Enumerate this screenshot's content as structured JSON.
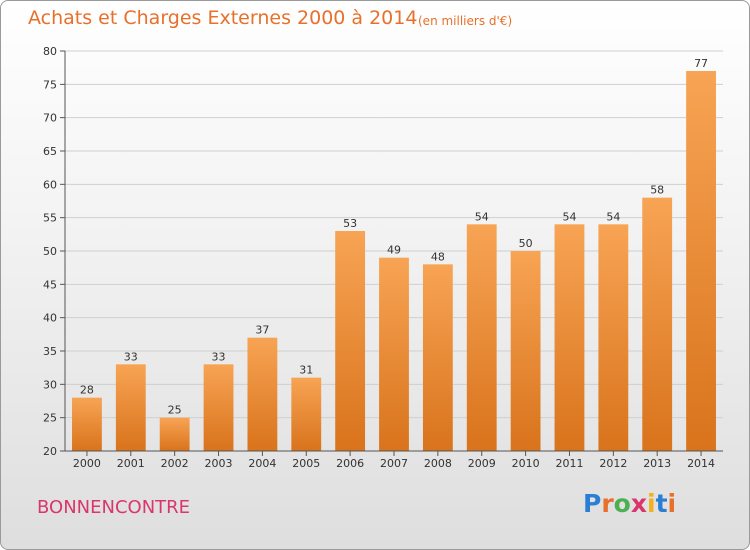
{
  "title": "Achats et Charges Externes 2000 à 2014",
  "subtitle": "(en milliers d'€)",
  "commune": "BONNENCONTRE",
  "logo": {
    "text": "Proxiti",
    "letters": [
      "P",
      "r",
      "o",
      "x",
      "i",
      "t",
      "i"
    ],
    "colors": [
      "#2a7fd4",
      "#e8702a",
      "#4caf50",
      "#d9376b",
      "#f2b01e",
      "#2a7fd4",
      "#e8702a"
    ]
  },
  "colors": {
    "bar_light": "#f7a454",
    "bar_dark": "#d9731c",
    "title": "#e8702a",
    "commune": "#d9376b"
  },
  "chart_data": {
    "type": "bar",
    "title": "Achats et Charges Externes 2000 à 2014",
    "subtitle": "(en milliers d'€)",
    "categories": [
      "2000",
      "2001",
      "2002",
      "2003",
      "2004",
      "2005",
      "2006",
      "2007",
      "2008",
      "2009",
      "2010",
      "2011",
      "2012",
      "2013",
      "2014"
    ],
    "values": [
      28,
      33,
      25,
      33,
      37,
      31,
      53,
      49,
      48,
      54,
      50,
      54,
      54,
      58,
      77
    ],
    "xlabel": "",
    "ylabel": "",
    "ylim": [
      20,
      80
    ],
    "yticks": [
      20,
      25,
      30,
      35,
      40,
      45,
      50,
      55,
      60,
      65,
      70,
      75,
      80
    ],
    "grid": true,
    "legend": "none"
  }
}
